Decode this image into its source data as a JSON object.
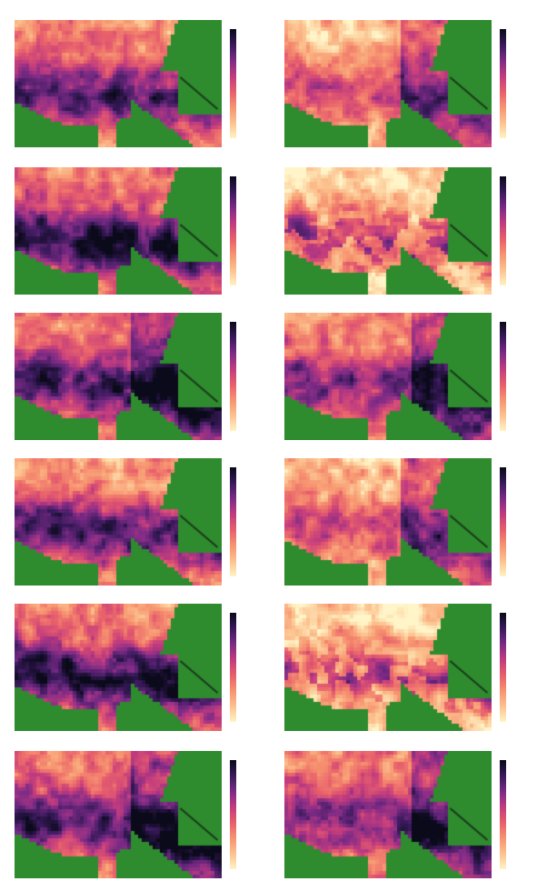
{
  "figure": {
    "rows": 6,
    "cols": 2,
    "ocean_color": "#2e8b2e",
    "colormap": [
      "#fff5c8",
      "#fcc390",
      "#f79470",
      "#e8606c",
      "#c23c7e",
      "#7d2b86",
      "#3a1a5c",
      "#0a0a1a"
    ]
  },
  "panels": [
    {
      "title1": "",
      "title2": "",
      "pattern": 0,
      "tick_labels": [
        "",
        "",
        "",
        ""
      ]
    },
    {
      "title1": "",
      "title2": "",
      "pattern": 1,
      "tick_labels": [
        "",
        "",
        "",
        ""
      ]
    },
    {
      "title1": "",
      "title2": "",
      "pattern": 2,
      "tick_labels": [
        "",
        "",
        "",
        ""
      ]
    },
    {
      "title1": "",
      "title2": "",
      "pattern": 3,
      "tick_labels": [
        "",
        "",
        "",
        ""
      ]
    },
    {
      "title1": "",
      "title2": "",
      "pattern": 4,
      "tick_labels": [
        "",
        "",
        "",
        ""
      ]
    },
    {
      "title1": "",
      "title2": "",
      "pattern": 5,
      "tick_labels": [
        "",
        "",
        "",
        ""
      ]
    },
    {
      "title1": "",
      "title2": "",
      "pattern": 6,
      "tick_labels": [
        "",
        "",
        "",
        ""
      ]
    },
    {
      "title1": "",
      "title2": "",
      "pattern": 7,
      "tick_labels": [
        "",
        "",
        "",
        ""
      ]
    },
    {
      "title1": "",
      "title2": "",
      "pattern": 8,
      "tick_labels": [
        "",
        "",
        "",
        ""
      ]
    },
    {
      "title1": "",
      "title2": "",
      "pattern": 9,
      "tick_labels": [
        "",
        "",
        "",
        ""
      ]
    },
    {
      "title1": "",
      "title2": "",
      "pattern": 10,
      "tick_labels": [
        "",
        "",
        "",
        ""
      ]
    },
    {
      "title1": "",
      "title2": "",
      "pattern": 11,
      "tick_labels": [
        "",
        "",
        "",
        ""
      ]
    }
  ]
}
